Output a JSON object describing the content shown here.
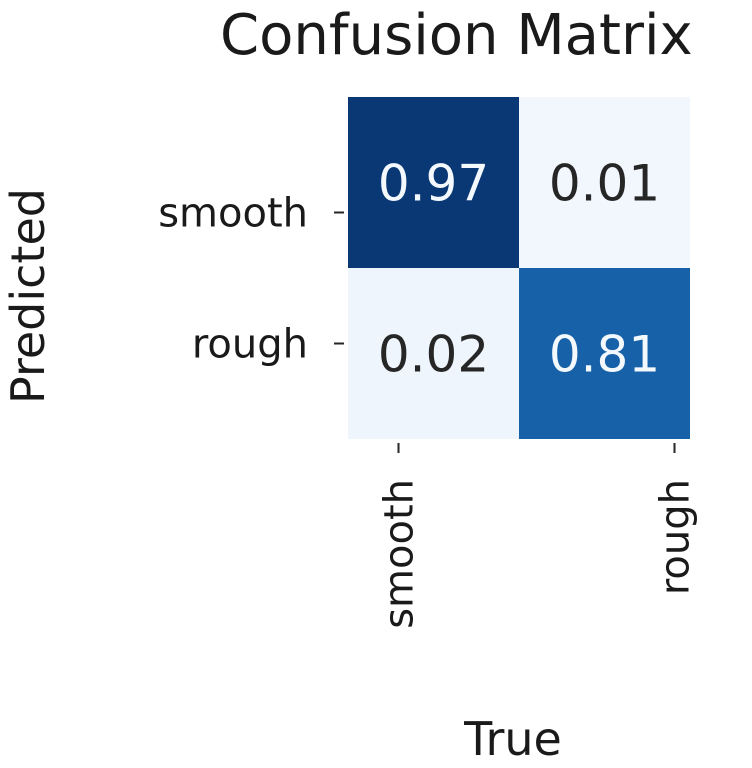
{
  "chart_data": {
    "type": "heatmap",
    "title": "Confusion Matrix",
    "xlabel": "True",
    "ylabel": "Predicted",
    "x_categories": [
      "smooth",
      "rough"
    ],
    "y_categories": [
      "smooth",
      "rough"
    ],
    "values": [
      [
        0.97,
        0.01
      ],
      [
        0.02,
        0.81
      ]
    ],
    "value_labels": [
      [
        "0.97",
        "0.01"
      ],
      [
        "0.02",
        "0.81"
      ]
    ],
    "colormap": "Blues",
    "vmin": 0.0,
    "vmax": 1.0,
    "colors": {
      "low": "#f4f9fe",
      "mid": "#1764ab",
      "high": "#08306b",
      "text_dark": "#262626",
      "text_light": "#f4f9fe"
    }
  }
}
